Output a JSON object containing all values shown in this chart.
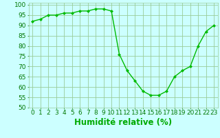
{
  "x": [
    0,
    1,
    2,
    3,
    4,
    5,
    6,
    7,
    8,
    9,
    10,
    11,
    12,
    13,
    14,
    15,
    16,
    17,
    18,
    19,
    20,
    21,
    22,
    23
  ],
  "y": [
    92,
    93,
    95,
    95,
    96,
    96,
    97,
    97,
    98,
    98,
    97,
    76,
    68,
    63,
    58,
    56,
    56,
    58,
    65,
    68,
    70,
    80,
    87,
    90
  ],
  "line_color": "#00bb00",
  "marker_color": "#00bb00",
  "bg_color": "#ccffff",
  "grid_color": "#99cc99",
  "xlabel": "Humidité relative (%)",
  "xlabel_color": "#00aa00",
  "ylim": [
    50,
    101
  ],
  "xlim": [
    -0.5,
    23.5
  ],
  "yticks": [
    50,
    55,
    60,
    65,
    70,
    75,
    80,
    85,
    90,
    95,
    100
  ],
  "xticks": [
    0,
    1,
    2,
    3,
    4,
    5,
    6,
    7,
    8,
    9,
    10,
    11,
    12,
    13,
    14,
    15,
    16,
    17,
    18,
    19,
    20,
    21,
    22,
    23
  ],
  "tick_color": "#007700",
  "tick_fontsize": 6.5,
  "xlabel_fontsize": 8.5
}
